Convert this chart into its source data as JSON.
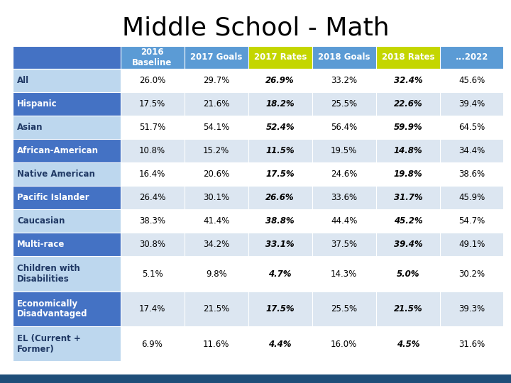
{
  "title": "Middle School - Math",
  "columns": [
    "2016\nBaseline",
    "2017 Goals",
    "2017 Rates",
    "2018 Goals",
    "2018 Rates",
    "...2022"
  ],
  "col_header_colors": [
    "#5b9bd5",
    "#5b9bd5",
    "#c4d600",
    "#5b9bd5",
    "#c4d600",
    "#5b9bd5"
  ],
  "rows": [
    {
      "label": "All",
      "values": [
        "26.0%",
        "29.7%",
        "26.9%",
        "33.2%",
        "32.4%",
        "45.6%"
      ],
      "dark": false
    },
    {
      "label": "Hispanic",
      "values": [
        "17.5%",
        "21.6%",
        "18.2%",
        "25.5%",
        "22.6%",
        "39.4%"
      ],
      "dark": true
    },
    {
      "label": "Asian",
      "values": [
        "51.7%",
        "54.1%",
        "52.4%",
        "56.4%",
        "59.9%",
        "64.5%"
      ],
      "dark": false
    },
    {
      "label": "African-American",
      "values": [
        "10.8%",
        "15.2%",
        "11.5%",
        "19.5%",
        "14.8%",
        "34.4%"
      ],
      "dark": true
    },
    {
      "label": "Native American",
      "values": [
        "16.4%",
        "20.6%",
        "17.5%",
        "24.6%",
        "19.8%",
        "38.6%"
      ],
      "dark": false
    },
    {
      "label": "Pacific Islander",
      "values": [
        "26.4%",
        "30.1%",
        "26.6%",
        "33.6%",
        "31.7%",
        "45.9%"
      ],
      "dark": true
    },
    {
      "label": "Caucasian",
      "values": [
        "38.3%",
        "41.4%",
        "38.8%",
        "44.4%",
        "45.2%",
        "54.7%"
      ],
      "dark": false
    },
    {
      "label": "Multi-race",
      "values": [
        "30.8%",
        "34.2%",
        "33.1%",
        "37.5%",
        "39.4%",
        "49.1%"
      ],
      "dark": true
    },
    {
      "label": "Children with\nDisabilities",
      "values": [
        "5.1%",
        "9.8%",
        "4.7%",
        "14.3%",
        "5.0%",
        "30.2%"
      ],
      "dark": false
    },
    {
      "label": "Economically\nDisadvantaged",
      "values": [
        "17.4%",
        "21.5%",
        "17.5%",
        "25.5%",
        "21.5%",
        "39.3%"
      ],
      "dark": true
    },
    {
      "label": "EL (Current +\nFormer)",
      "values": [
        "6.9%",
        "11.6%",
        "4.4%",
        "16.0%",
        "4.5%",
        "31.6%"
      ],
      "dark": false
    }
  ],
  "color_dark_label": "#4472c4",
  "color_light_label": "#bdd7ee",
  "color_dark_row": "#4472c4",
  "color_light_row": "#dce6f1",
  "color_white_label": "#ffffff",
  "color_dark_text": "#1f3864",
  "bold_cols": [
    2,
    4
  ],
  "footer_bar_color": "#1f4e79",
  "title_fontsize": 26,
  "cell_fontsize": 8.5,
  "header_fontsize": 8.5,
  "label_fontsize": 8.5
}
